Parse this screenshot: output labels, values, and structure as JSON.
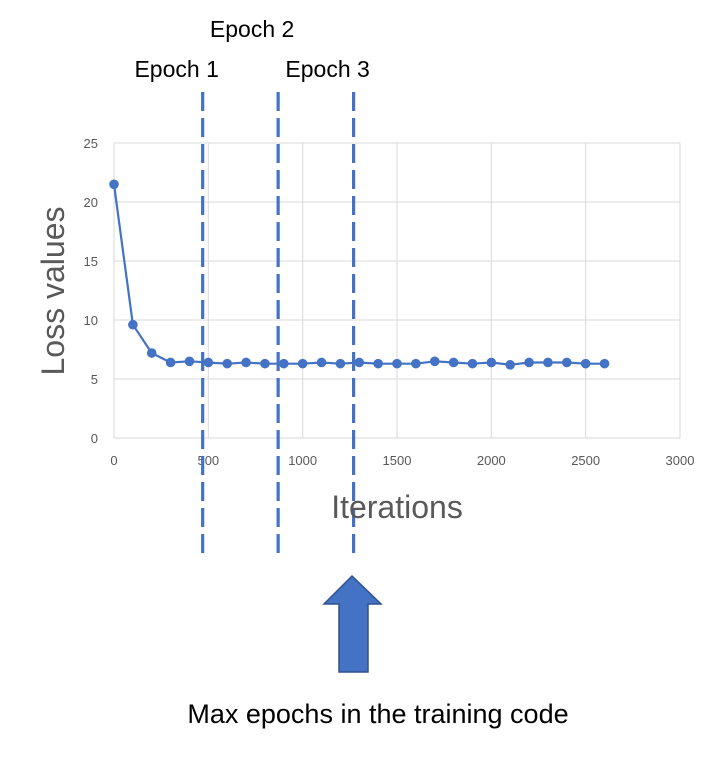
{
  "chart_data": {
    "type": "line",
    "xlabel": "Iterations",
    "ylabel": "Loss values",
    "xlim": [
      0,
      3000
    ],
    "ylim": [
      0,
      25
    ],
    "x_ticks": [
      "0",
      "500",
      "1000",
      "1500",
      "2000",
      "2500",
      "3000"
    ],
    "y_ticks": [
      "0",
      "5",
      "10",
      "15",
      "20",
      "25"
    ],
    "grid": true,
    "series_color": "#4472C4",
    "x": [
      0,
      100,
      200,
      300,
      400,
      500,
      600,
      700,
      800,
      900,
      1000,
      1100,
      1200,
      1300,
      1400,
      1500,
      1600,
      1700,
      1800,
      1900,
      2000,
      2100,
      2200,
      2300,
      2400,
      2500,
      2600
    ],
    "values": [
      21.5,
      9.6,
      7.2,
      6.4,
      6.5,
      6.4,
      6.3,
      6.4,
      6.3,
      6.3,
      6.3,
      6.4,
      6.3,
      6.4,
      6.3,
      6.3,
      6.3,
      6.5,
      6.4,
      6.3,
      6.4,
      6.2,
      6.4,
      6.4,
      6.4,
      6.3,
      6.3
    ],
    "annotations": [
      {
        "label": "Epoch 1",
        "x": 470
      },
      {
        "label": "Epoch 2",
        "x": 870
      },
      {
        "label": "Epoch 3",
        "x": 1270
      }
    ]
  },
  "arrow": {
    "caption": "Max epochs in the training code",
    "color": "#4472C4"
  }
}
